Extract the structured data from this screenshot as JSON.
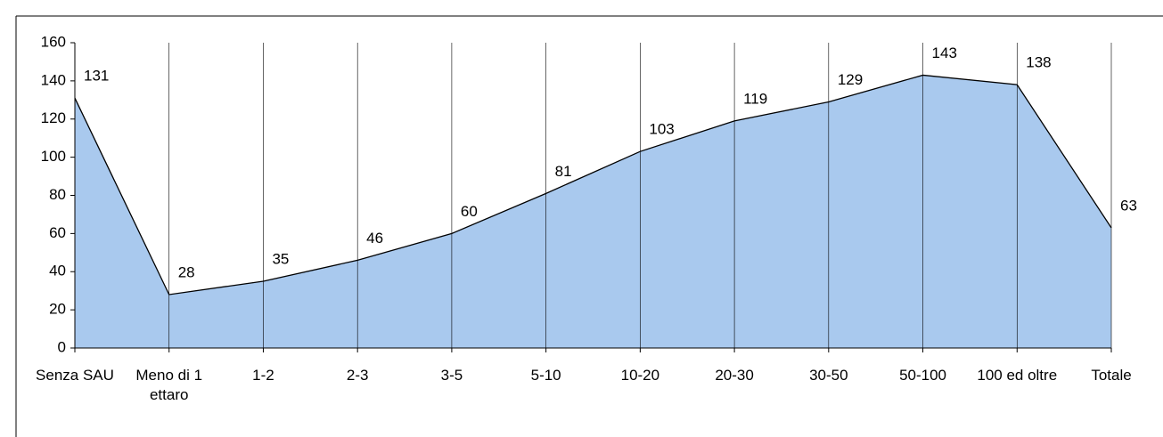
{
  "chart_data": {
    "type": "area",
    "categories": [
      "Senza SAU",
      "Meno di 1 ettaro",
      "1-2",
      "2-3",
      "3-5",
      "5-10",
      "10-20",
      "20-30",
      "30-50",
      "50-100",
      "100 ed oltre",
      "Totale"
    ],
    "values": [
      131,
      28,
      35,
      46,
      60,
      81,
      103,
      119,
      129,
      143,
      138,
      63
    ],
    "color": "#a9c9ee",
    "ylim": [
      0,
      160
    ],
    "yticks": [
      0,
      20,
      40,
      60,
      80,
      100,
      120,
      140,
      160
    ],
    "drop_lines": true
  }
}
